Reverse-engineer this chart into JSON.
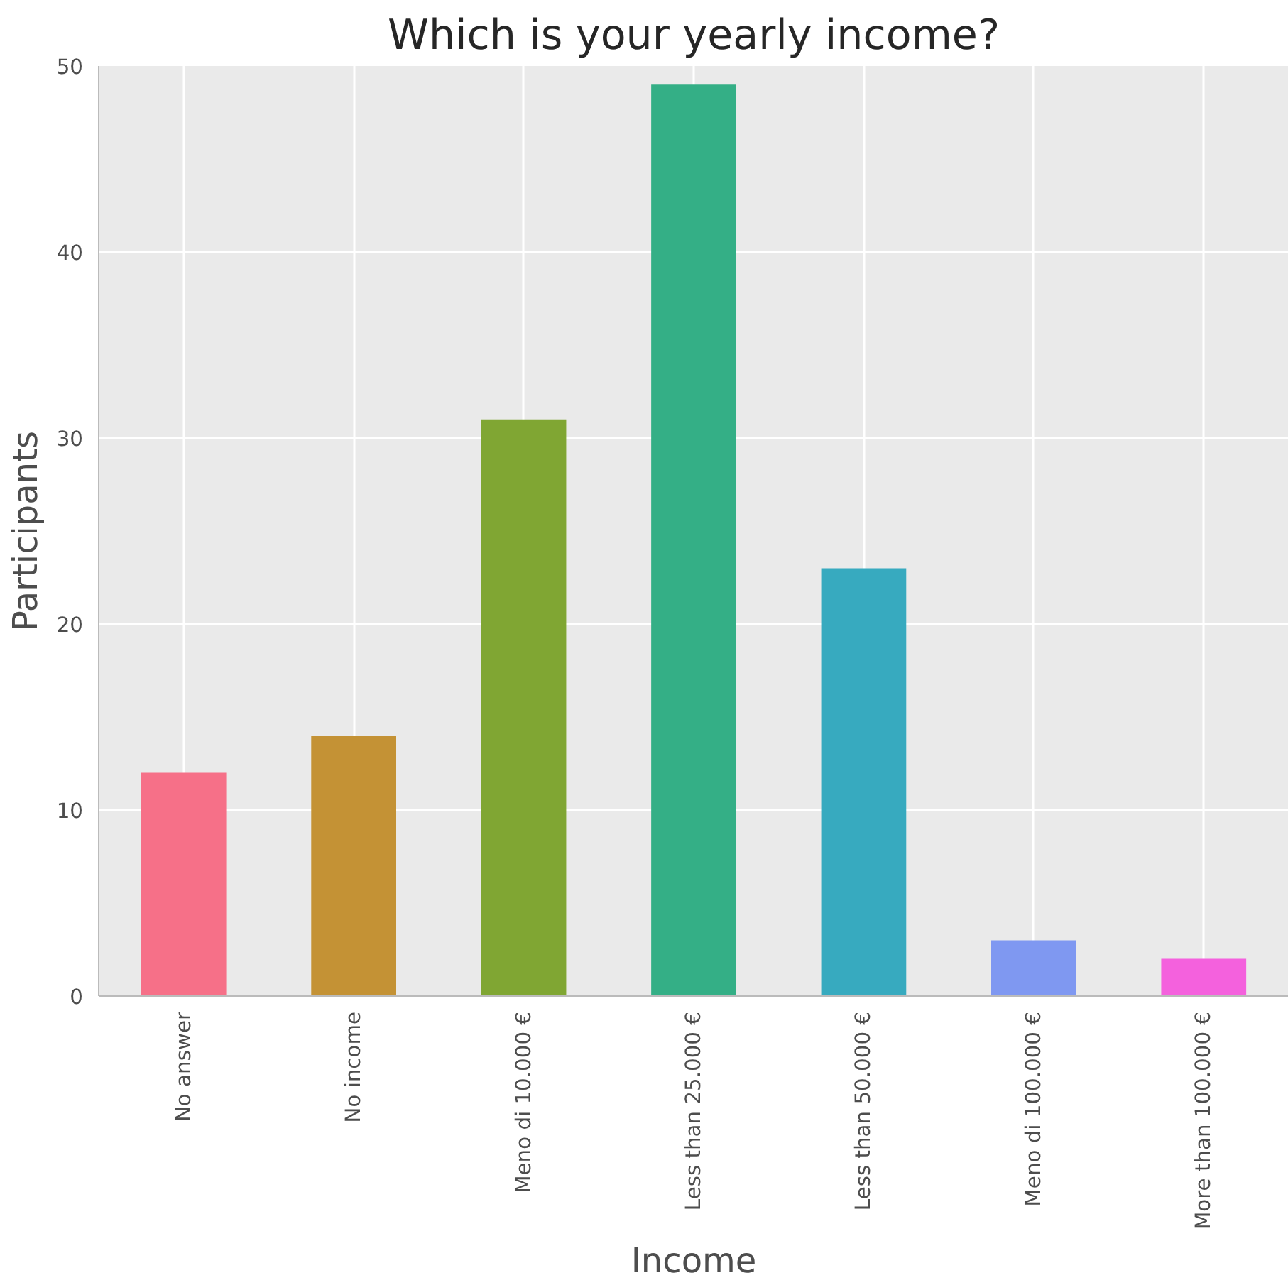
{
  "chart_data": {
    "type": "bar",
    "title": "Which is your yearly income?",
    "xlabel": "Income",
    "ylabel": "Participants",
    "categories": [
      "No answer",
      "No income",
      "Meno di 10.000 €",
      "Less than 25.000 €",
      "Less than 50.000 €",
      "Meno di 100.000 €",
      "More than 100.000 €"
    ],
    "values": [
      12,
      14,
      31,
      49,
      23,
      3,
      2
    ],
    "colors": [
      "#f67088",
      "#c49235",
      "#80a633",
      "#34af86",
      "#37aabf",
      "#7f98f1",
      "#f461dd"
    ],
    "ylim": [
      0,
      50
    ],
    "yticks": [
      0,
      10,
      20,
      30,
      40,
      50
    ],
    "grid": true
  }
}
